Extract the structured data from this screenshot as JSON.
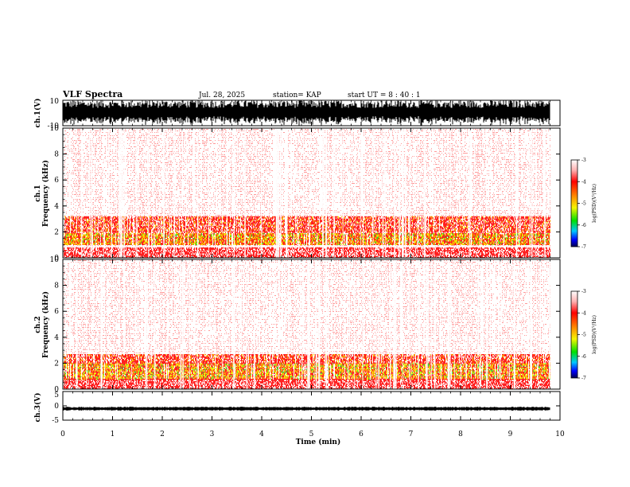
{
  "header": {
    "title": "VLF Spectra",
    "date": "Jul. 28, 2025",
    "station": "station= KAP",
    "start": "start UT =  8 : 40 : 1"
  },
  "chart_data": [
    {
      "id": "ch1-waveform",
      "type": "line",
      "ylabel": "ch.1(V)",
      "ylim": [
        -10,
        10
      ],
      "yticks": [
        "10",
        "-10"
      ],
      "xlim": [
        0,
        10
      ],
      "data_end_min": 9.8,
      "description_values": {
        "amplitude_range": [
          -10,
          10
        ]
      }
    },
    {
      "id": "ch1-spectrogram",
      "type": "heatmap",
      "ylabel": "ch.1\nFrequency (kHz)",
      "ylim": [
        0,
        10
      ],
      "yticks": [
        "0",
        "2",
        "4",
        "6",
        "8",
        "10"
      ],
      "xlim": [
        0,
        10
      ],
      "data_end_min": 9.8,
      "bands_khz": [
        [
          1.0,
          1.9,
          "strong"
        ],
        [
          2.0,
          3.2,
          "moderate"
        ]
      ],
      "colorbar": {
        "label": "log(PSD)(V²/Hz)",
        "range": [
          -7,
          -3
        ],
        "ticks": [
          "-3",
          "-4",
          "-5",
          "-6",
          "-7"
        ]
      }
    },
    {
      "id": "ch2-spectrogram",
      "type": "heatmap",
      "ylabel": "ch.2\nFrequency (kHz)",
      "ylim": [
        0,
        10
      ],
      "yticks": [
        "0",
        "2",
        "4",
        "6",
        "8",
        "10"
      ],
      "xlim": [
        0,
        10
      ],
      "data_end_min": 9.8,
      "bands_khz": [
        [
          0.8,
          2.0,
          "strong"
        ],
        [
          2.0,
          2.7,
          "moderate"
        ]
      ],
      "colorbar": {
        "label": "log(PSD)(V²/Hz)",
        "range": [
          -7,
          -3
        ],
        "ticks": [
          "-3",
          "-4",
          "-5",
          "-6",
          "-7"
        ]
      }
    },
    {
      "id": "ch3-waveform",
      "type": "line",
      "ylabel": "ch.3(V)",
      "ylim": [
        -5,
        5
      ],
      "yticks": [
        "5",
        "0",
        "-5"
      ],
      "xlim": [
        0,
        10
      ],
      "data_end_min": 9.8,
      "baseline_v": -1.0
    }
  ],
  "xaxis": {
    "label": "Time (min)",
    "ticks": [
      "0",
      "1",
      "2",
      "3",
      "4",
      "5",
      "6",
      "7",
      "8",
      "9",
      "10"
    ]
  },
  "colors": {
    "background": "#ffffff",
    "sparse": "#ff9a9a",
    "red": "#ff2020",
    "orange": "#ff9900",
    "yellow": "#f0f000",
    "green": "#30e030"
  }
}
